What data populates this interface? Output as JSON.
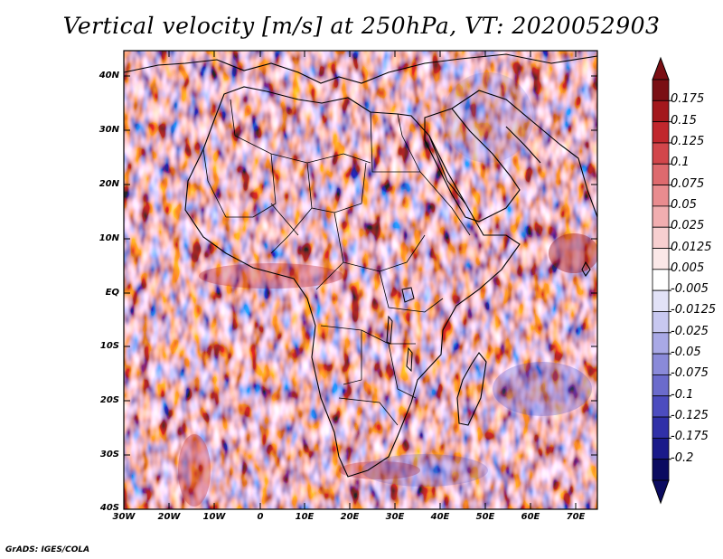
{
  "title": "Vertical velocity [m/s] at 250hPa, VT: 2020052903",
  "footer": "GrADS: IGES/COLA",
  "latitude_labels": [
    "40N",
    "30N",
    "20N",
    "10N",
    "EQ",
    "10S",
    "20S",
    "30S",
    "40S"
  ],
  "longitude_labels": [
    "30W",
    "20W",
    "10W",
    "0",
    "10E",
    "20E",
    "30E",
    "40E",
    "50E",
    "60E",
    "70E"
  ],
  "colorbar": {
    "labels": [
      "0.175",
      "0.15",
      "0.125",
      "0.1",
      "0.075",
      "0.05",
      "0.025",
      "0.0125",
      "0.005",
      "-0.005",
      "-0.0125",
      "-0.025",
      "-0.05",
      "-0.075",
      "-0.1",
      "-0.125",
      "-0.175",
      "-0.2"
    ],
    "colors": [
      "#7a0f14",
      "#a3181c",
      "#c1272d",
      "#d2464b",
      "#de6a6e",
      "#e98c8f",
      "#f1aeb0",
      "#f7cfd0",
      "#fbe8e8",
      "#ffffff",
      "#e2e2f7",
      "#c8c8f0",
      "#a9a9e6",
      "#8a8ad9",
      "#6b6bcc",
      "#4c4cbf",
      "#3030a8",
      "#1a1a8a",
      "#0b0b60"
    ]
  }
}
